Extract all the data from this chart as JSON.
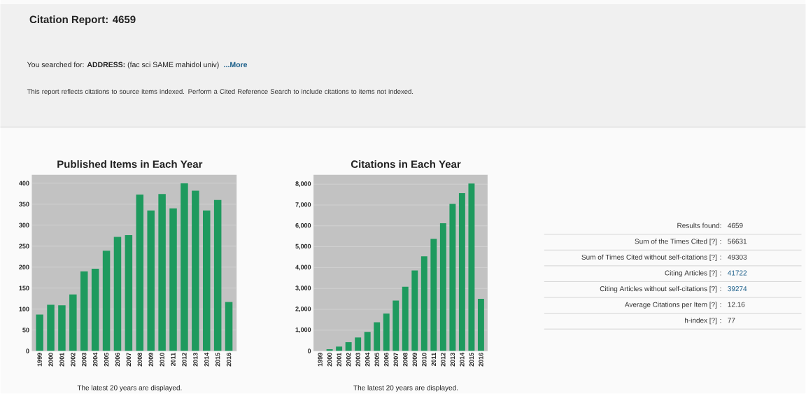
{
  "chart_data": [
    {
      "type": "bar",
      "title": "Published Items in Each Year",
      "categories": [
        "1999",
        "2000",
        "2001",
        "2002",
        "2003",
        "2004",
        "2005",
        "2006",
        "2007",
        "2008",
        "2009",
        "2010",
        "2011",
        "2012",
        "2013",
        "2014",
        "2015",
        "2016"
      ],
      "values": [
        87,
        110,
        109,
        135,
        190,
        196,
        239,
        272,
        276,
        373,
        335,
        374,
        340,
        400,
        382,
        335,
        360,
        117
      ],
      "color": "#1e9a5e",
      "ylim": [
        0,
        420
      ],
      "yticks": [
        0,
        50,
        100,
        150,
        200,
        250,
        300,
        350,
        400
      ],
      "grid": "y",
      "annotations": [
        "The latest 20 years are displayed."
      ]
    },
    {
      "type": "bar",
      "title": "Citations in Each Year",
      "categories": [
        "1999",
        "2000",
        "2001",
        "2002",
        "2003",
        "2004",
        "2005",
        "2006",
        "2007",
        "2008",
        "2009",
        "2010",
        "2011",
        "2012",
        "2013",
        "2014",
        "2015",
        "2016"
      ],
      "values": [
        0,
        90,
        210,
        420,
        650,
        920,
        1380,
        1800,
        2420,
        3080,
        3860,
        4540,
        5380,
        6130,
        7060,
        7570,
        8030,
        2500
      ],
      "color": "#1e9a5e",
      "ylim": [
        0,
        8450
      ],
      "yticks": [
        0,
        {
          "value": 1000,
          "label": "1,000"
        },
        {
          "value": 2000,
          "label": "2,000"
        },
        {
          "value": 3000,
          "label": "3,000"
        },
        {
          "value": 4000,
          "label": "4,000"
        },
        {
          "value": 5000,
          "label": "5,000"
        },
        {
          "value": 6000,
          "label": "6,000"
        },
        {
          "value": 7000,
          "label": "7,000"
        },
        {
          "value": 8000,
          "label": "8,000"
        }
      ],
      "grid": "y",
      "annotations": [
        "The latest 20 years are displayed."
      ]
    },
    {
      "type": "other",
      "title": "Citation Report: 4659",
      "annotations": [
        "You searched for:  **ADDRESS:** (fac sci SAME mahidol univ)",
        "...More",
        "This report reflects citations to source items indexed. Perform a Cited Reference Search to include citations to items not indexed.",
        "Results found:",
        "4659",
        "Sum of the Times Cited [?] :",
        "56631",
        "Sum of Times Cited without self-citations [?] :",
        "49303",
        "Citing Articles [?] :",
        "41722",
        "Citing Articles without self-citations [?] :",
        "39274",
        "Average Citations per Item [?] :",
        "12.16",
        "h-index [?] :",
        "77"
      ]
    }
  ]
}
